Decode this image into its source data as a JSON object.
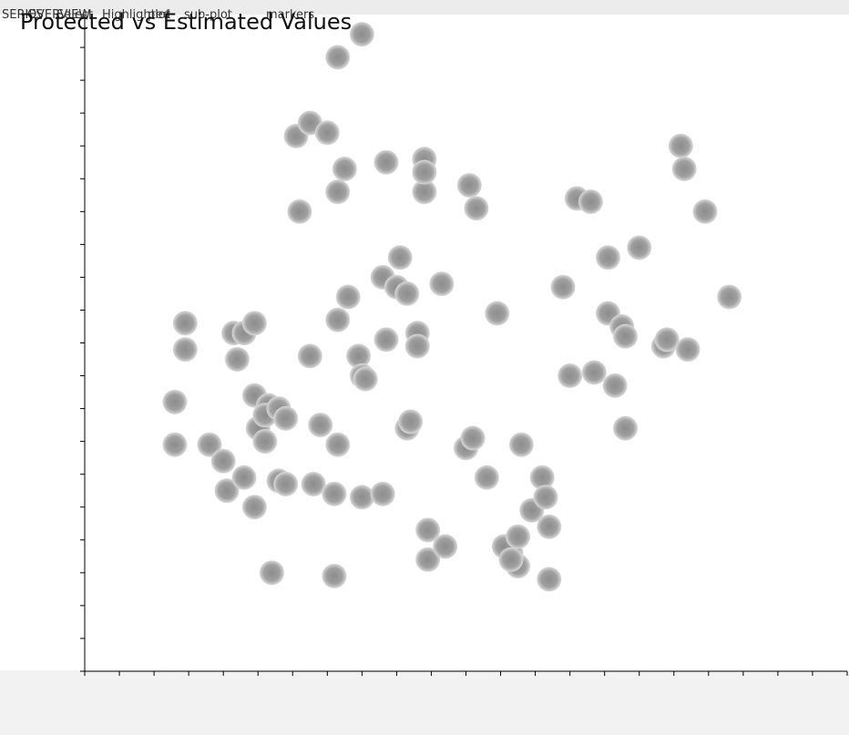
{
  "header": {
    "overlapping_labels": [
      "SERIES",
      "OVERVIEW",
      "Highlighted",
      "sub-plot",
      "Select",
      "plot",
      "markers"
    ],
    "title": "Protected vs Estimated Values"
  },
  "colors": {
    "point": "#8c8c8c",
    "point_highlight": "#d9d9d9",
    "axis": "#000000",
    "background": "#ffffff",
    "page": "#f2f2f2"
  },
  "chart_data": {
    "type": "scatter",
    "title": "Protected vs Estimated Values",
    "xlabel": "",
    "ylabel": "",
    "xlim": [
      0,
      22
    ],
    "ylim": [
      0,
      20
    ],
    "x_ticks": 22,
    "y_ticks": 20,
    "grid": false,
    "series": [
      {
        "points": [
          [
            2.6,
            6.9
          ],
          [
            2.6,
            8.2
          ],
          [
            2.9,
            9.8
          ],
          [
            2.9,
            10.6
          ],
          [
            3.6,
            6.9
          ],
          [
            4.0,
            6.4
          ],
          [
            4.1,
            5.5
          ],
          [
            4.3,
            10.3
          ],
          [
            4.6,
            10.3
          ],
          [
            4.6,
            5.9
          ],
          [
            4.4,
            9.5
          ],
          [
            4.9,
            5.0
          ],
          [
            4.9,
            8.4
          ],
          [
            4.9,
            10.6
          ],
          [
            5.0,
            7.4
          ],
          [
            5.2,
            7.0
          ],
          [
            5.3,
            8.1
          ],
          [
            5.4,
            3.0
          ],
          [
            5.2,
            7.8
          ],
          [
            5.6,
            5.8
          ],
          [
            5.6,
            8.0
          ],
          [
            5.8,
            5.7
          ],
          [
            5.8,
            7.7
          ],
          [
            6.1,
            16.3
          ],
          [
            6.2,
            14.0
          ],
          [
            6.5,
            16.7
          ],
          [
            6.5,
            9.6
          ],
          [
            6.6,
            5.7
          ],
          [
            6.8,
            7.5
          ],
          [
            7.0,
            16.4
          ],
          [
            7.2,
            2.9
          ],
          [
            7.2,
            5.4
          ],
          [
            7.3,
            6.9
          ],
          [
            7.3,
            10.7
          ],
          [
            7.3,
            14.6
          ],
          [
            7.3,
            18.7
          ],
          [
            7.5,
            15.3
          ],
          [
            7.6,
            11.4
          ],
          [
            7.9,
            9.6
          ],
          [
            8.0,
            19.4
          ],
          [
            8.0,
            5.3
          ],
          [
            8.0,
            9.0
          ],
          [
            8.1,
            8.9
          ],
          [
            8.6,
            5.4
          ],
          [
            8.6,
            12.0
          ],
          [
            8.7,
            15.5
          ],
          [
            8.7,
            10.1
          ],
          [
            9.0,
            11.7
          ],
          [
            9.1,
            12.6
          ],
          [
            9.3,
            11.5
          ],
          [
            9.3,
            7.4
          ],
          [
            9.4,
            7.6
          ],
          [
            9.6,
            10.3
          ],
          [
            9.6,
            9.9
          ],
          [
            9.8,
            14.6
          ],
          [
            9.8,
            15.6
          ],
          [
            9.8,
            15.2
          ],
          [
            9.9,
            4.3
          ],
          [
            9.9,
            3.4
          ],
          [
            10.4,
            3.8
          ],
          [
            10.3,
            11.8
          ],
          [
            11.0,
            6.8
          ],
          [
            11.2,
            7.1
          ],
          [
            11.1,
            14.8
          ],
          [
            11.3,
            14.1
          ],
          [
            11.6,
            5.9
          ],
          [
            11.9,
            10.9
          ],
          [
            12.3,
            3.6
          ],
          [
            12.1,
            3.8
          ],
          [
            12.5,
            4.1
          ],
          [
            12.5,
            3.2
          ],
          [
            12.3,
            3.4
          ],
          [
            12.6,
            6.9
          ],
          [
            12.9,
            4.9
          ],
          [
            13.2,
            5.9
          ],
          [
            13.3,
            5.3
          ],
          [
            13.4,
            4.4
          ],
          [
            13.4,
            2.8
          ],
          [
            13.8,
            11.7
          ],
          [
            14.0,
            9.0
          ],
          [
            14.2,
            14.4
          ],
          [
            14.6,
            14.3
          ],
          [
            14.7,
            9.1
          ],
          [
            15.1,
            12.6
          ],
          [
            15.1,
            10.9
          ],
          [
            15.3,
            8.7
          ],
          [
            15.5,
            10.5
          ],
          [
            15.6,
            10.2
          ],
          [
            15.6,
            7.4
          ],
          [
            16.0,
            12.9
          ],
          [
            16.7,
            9.9
          ],
          [
            16.8,
            10.1
          ],
          [
            17.2,
            16.0
          ],
          [
            17.4,
            9.8
          ],
          [
            17.3,
            15.3
          ],
          [
            17.9,
            14.0
          ],
          [
            18.6,
            11.4
          ]
        ]
      }
    ]
  }
}
